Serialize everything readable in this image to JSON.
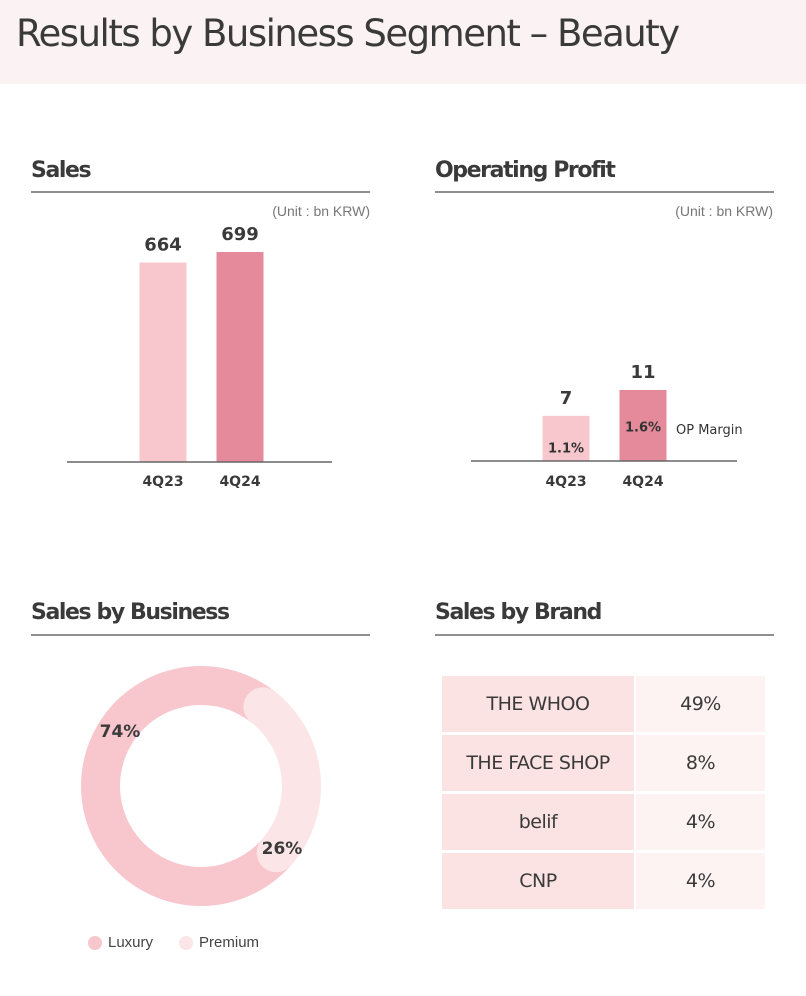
{
  "page": {
    "title": "Results by Business Segment – Beauty"
  },
  "colors": {
    "title_bg": "#fbf3f3",
    "bar_prior": "#f7c7cd",
    "bar_current": "#e48a9a",
    "luxury": "#f7c7cd",
    "premium": "#fbe5e6",
    "table_name_bg": "#fbe3e3",
    "table_value_bg": "#fdf3f3"
  },
  "sections": {
    "sales": "Sales",
    "operating_profit": "Operating Profit",
    "sales_by_business": "Sales by Business",
    "sales_by_brand": "Sales by Brand"
  },
  "unit_label": "(Unit : bn KRW)",
  "chart_data": [
    {
      "type": "bar",
      "title": "Sales",
      "unit": "(Unit : bn KRW)",
      "categories": [
        "4Q23",
        "4Q24"
      ],
      "values": [
        664,
        699
      ],
      "value_labels": [
        "664",
        "699"
      ]
    },
    {
      "type": "bar",
      "title": "Operating Profit",
      "unit": "(Unit : bn KRW)",
      "categories": [
        "4Q23",
        "4Q24"
      ],
      "values": [
        7,
        11
      ],
      "value_labels": [
        "7",
        "11"
      ],
      "op_margin_labels": [
        "1.1%",
        "1.6%"
      ],
      "side_label": "OP Margin"
    },
    {
      "type": "pie",
      "title": "Sales by Business",
      "categories": [
        "Luxury",
        "Premium"
      ],
      "values": [
        74,
        26
      ],
      "value_labels": [
        "74%",
        "26%"
      ],
      "legend_position": "bottom-left"
    },
    {
      "type": "table",
      "title": "Sales by Brand",
      "rows": [
        {
          "brand": "THE WHOO",
          "share": "49%"
        },
        {
          "brand": "THE FACE SHOP",
          "share": "8%"
        },
        {
          "brand": "belif",
          "share": "4%"
        },
        {
          "brand": "CNP",
          "share": "4%"
        }
      ]
    }
  ]
}
